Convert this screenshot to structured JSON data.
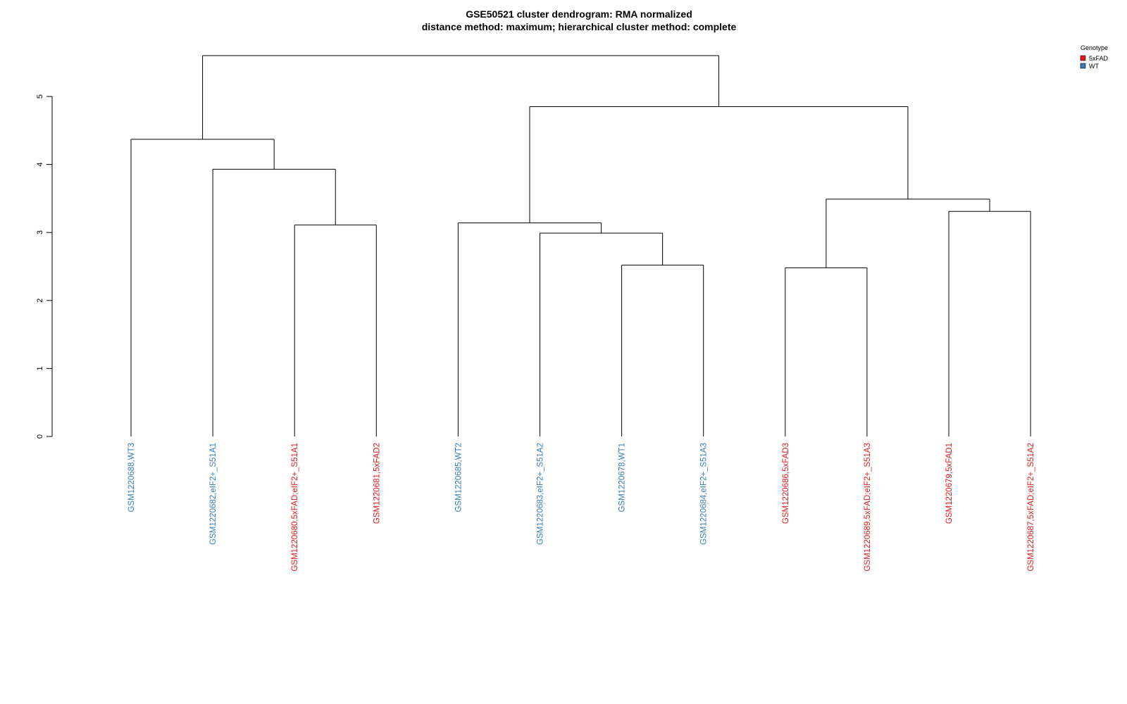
{
  "chart_data": {
    "type": "dendrogram",
    "title": "GSE50521 cluster dendrogram: RMA normalized",
    "subtitle": "distance method: maximum; hierarchical cluster method: complete",
    "ylim": [
      0,
      5
    ],
    "yticks": [
      "0",
      "1",
      "2",
      "3",
      "4",
      "5"
    ],
    "leaves": [
      {
        "label": "GSM1220688,WT3",
        "group": "WT"
      },
      {
        "label": "GSM1220682,eIF2+_S51A1",
        "group": "WT"
      },
      {
        "label": "GSM1220680,5xFAD;eIF2+_S51A1",
        "group": "5xFAD"
      },
      {
        "label": "GSM1220681,5xFAD2",
        "group": "5xFAD"
      },
      {
        "label": "GSM1220685,WT2",
        "group": "WT"
      },
      {
        "label": "GSM1220683,eIF2+_S51A2",
        "group": "WT"
      },
      {
        "label": "GSM1220678,WT1",
        "group": "WT"
      },
      {
        "label": "GSM1220684,eIF2+_S51A3",
        "group": "WT"
      },
      {
        "label": "GSM1220686,5xFAD3",
        "group": "5xFAD"
      },
      {
        "label": "GSM1220689,5xFAD;eIF2+_S51A3",
        "group": "5xFAD"
      },
      {
        "label": "GSM1220679,5xFAD1",
        "group": "5xFAD"
      },
      {
        "label": "GSM1220687,5xFAD;eIF2+_S51A2",
        "group": "5xFAD"
      }
    ],
    "merges": [
      {
        "left": "L2",
        "right": "L3",
        "height": 3.11
      },
      {
        "left": "L1",
        "right": "M0",
        "height": 3.93
      },
      {
        "left": "L0",
        "right": "M1",
        "height": 4.37
      },
      {
        "left": "L6",
        "right": "L7",
        "height": 2.52
      },
      {
        "left": "L5",
        "right": "M3",
        "height": 2.99
      },
      {
        "left": "L4",
        "right": "M4",
        "height": 3.14
      },
      {
        "left": "L8",
        "right": "L9",
        "height": 2.48
      },
      {
        "left": "L10",
        "right": "L11",
        "height": 3.31
      },
      {
        "left": "M6",
        "right": "M7",
        "height": 3.49
      },
      {
        "left": "M5",
        "right": "M8",
        "height": 4.85
      },
      {
        "left": "M2",
        "right": "M9",
        "height": 5.6
      }
    ],
    "legend": {
      "title": "Genotype",
      "position": "top-right",
      "entries": [
        {
          "label": "5xFAD",
          "color": "#E41A1C"
        },
        {
          "label": "WT",
          "color": "#377EB8"
        }
      ]
    }
  }
}
